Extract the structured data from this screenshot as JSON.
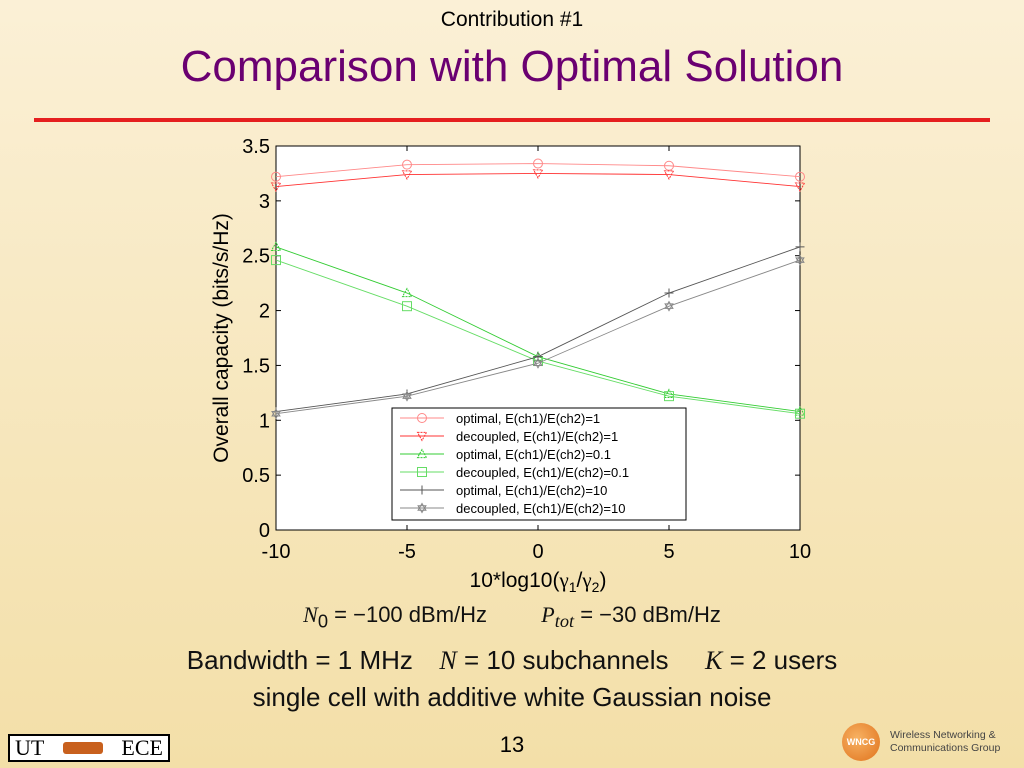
{
  "slide": {
    "subtitle": "Contribution #1",
    "title": "Comparison with Optimal Solution",
    "page_number": "13",
    "eq1": {
      "n0_sym": "N",
      "n0_sub": "0",
      "n0_value": "= −100 dBm/Hz",
      "ptot_sym": "P",
      "ptot_sub": "tot",
      "ptot_value": "= −30 dBm/Hz"
    },
    "eq2": {
      "bandwidth": "Bandwidth = 1 MHz",
      "n_sym": "N",
      "n_value": "= 10 subchannels",
      "k_sym": "K",
      "k_value": "= 2 users"
    },
    "eq3": "single cell with additive white Gaussian noise",
    "logos": {
      "ut_left": "UT",
      "ut_right": "ECE",
      "wncg_badge": "WNCG",
      "wncg_line1": "Wireless Networking &",
      "wncg_line2": "Communications Group"
    }
  },
  "chart_data": {
    "type": "line",
    "xlabel_prefix": "10*log10(",
    "xlabel_gamma": "γ",
    "xlabel_sub1": "1",
    "xlabel_slash": "/",
    "xlabel_sub2": "2",
    "xlabel_suffix": ")",
    "ylabel": "Overall capacity (bits/s/Hz)",
    "xlim": [
      -10,
      10
    ],
    "ylim": [
      0,
      3.5
    ],
    "x_ticks": [
      "-10",
      "-5",
      "0",
      "5",
      "10"
    ],
    "y_ticks": [
      "0",
      "0.5",
      "1",
      "1.5",
      "2",
      "2.5",
      "3",
      "3.5"
    ],
    "legend_position": "bottom-right",
    "grid": false,
    "x": [
      -10,
      -5,
      0,
      5,
      10
    ],
    "series": [
      {
        "name": "optimal, E(ch1)/E(ch2)=1",
        "values": [
          3.22,
          3.33,
          3.34,
          3.32,
          3.22
        ],
        "color": "#ff8888",
        "marker": "circle"
      },
      {
        "name": "decoupled, E(ch1)/E(ch2)=1",
        "values": [
          3.13,
          3.24,
          3.25,
          3.24,
          3.13
        ],
        "color": "#ff3333",
        "marker": "triangle-down"
      },
      {
        "name": "optimal, E(ch1)/E(ch2)=0.1",
        "values": [
          2.58,
          2.16,
          1.58,
          1.24,
          1.08
        ],
        "color": "#33cc33",
        "marker": "triangle-up"
      },
      {
        "name": "decoupled, E(ch1)/E(ch2)=0.1",
        "values": [
          2.46,
          2.04,
          1.54,
          1.22,
          1.06
        ],
        "color": "#66dd66",
        "marker": "square"
      },
      {
        "name": "optimal, E(ch1)/E(ch2)=10",
        "values": [
          1.08,
          1.24,
          1.58,
          2.16,
          2.58
        ],
        "color": "#555555",
        "marker": "plus"
      },
      {
        "name": "decoupled, E(ch1)/E(ch2)=10",
        "values": [
          1.06,
          1.22,
          1.52,
          2.04,
          2.46
        ],
        "color": "#888888",
        "marker": "hexagram"
      }
    ]
  }
}
